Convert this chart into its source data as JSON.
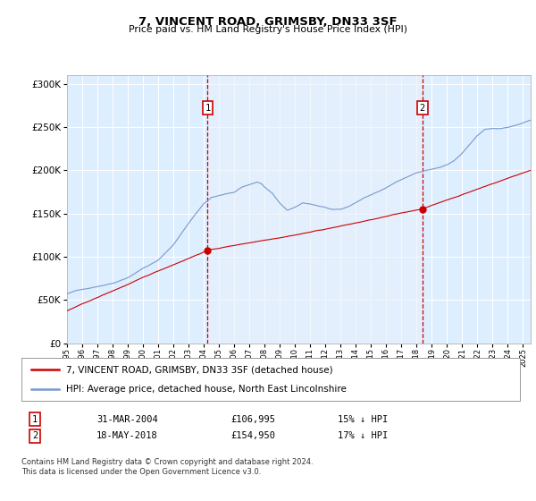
{
  "title": "7, VINCENT ROAD, GRIMSBY, DN33 3SF",
  "subtitle": "Price paid vs. HM Land Registry's House Price Index (HPI)",
  "ylabel_ticks": [
    "£0",
    "£50K",
    "£100K",
    "£150K",
    "£200K",
    "£250K",
    "£300K"
  ],
  "ytick_values": [
    0,
    50000,
    100000,
    150000,
    200000,
    250000,
    300000
  ],
  "ylim": [
    0,
    310000
  ],
  "xlim_start": 1995.0,
  "xlim_end": 2025.5,
  "bg_color": "#ddeeff",
  "highlight_bg": "#e8f0fa",
  "grid_color": "#ffffff",
  "red_line_color": "#cc0000",
  "blue_line_color": "#7799cc",
  "marker1_x": 2004.25,
  "marker1_y": 106995,
  "marker2_x": 2018.38,
  "marker2_y": 154950,
  "annotation1_label": "1",
  "annotation2_label": "2",
  "legend_line1": "7, VINCENT ROAD, GRIMSBY, DN33 3SF (detached house)",
  "legend_line2": "HPI: Average price, detached house, North East Lincolnshire",
  "table_row1": [
    "1",
    "31-MAR-2004",
    "£106,995",
    "15% ↓ HPI"
  ],
  "table_row2": [
    "2",
    "18-MAY-2018",
    "£154,950",
    "17% ↓ HPI"
  ],
  "footer": "Contains HM Land Registry data © Crown copyright and database right 2024.\nThis data is licensed under the Open Government Licence v3.0."
}
